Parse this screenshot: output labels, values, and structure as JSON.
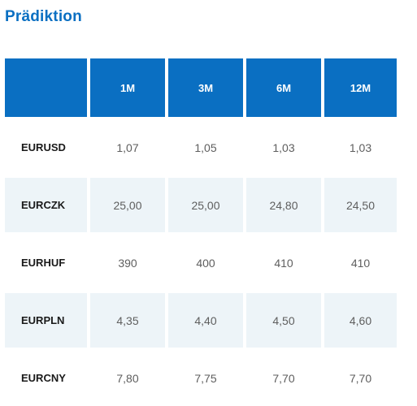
{
  "title": "Prädiktion",
  "columns": [
    "",
    "1M",
    "3M",
    "6M",
    "12M"
  ],
  "rows": [
    {
      "pair": "EURUSD",
      "values": [
        "1,07",
        "1,05",
        "1,03",
        "1,03"
      ]
    },
    {
      "pair": "EURCZK",
      "values": [
        "25,00",
        "25,00",
        "24,80",
        "24,50"
      ]
    },
    {
      "pair": "EURHUF",
      "values": [
        "390",
        "400",
        "410",
        "410"
      ]
    },
    {
      "pair": "EURPLN",
      "values": [
        "4,35",
        "4,40",
        "4,50",
        "4,60"
      ]
    },
    {
      "pair": "EURCNY",
      "values": [
        "7,80",
        "7,75",
        "7,70",
        "7,70"
      ]
    }
  ],
  "colors": {
    "accent": "#0a6fc2",
    "header_text": "#ffffff",
    "shaded_row": "#edf4f8",
    "value_text": "#5e5e5e",
    "pair_text": "#1a1a1a"
  }
}
